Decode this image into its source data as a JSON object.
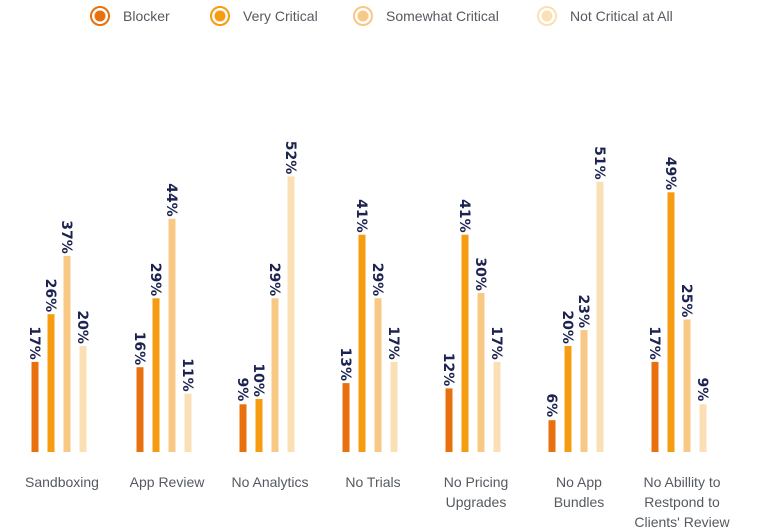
{
  "chart_data": {
    "type": "bar",
    "legend_position": "top",
    "grid": false,
    "ylim": [
      0,
      60
    ],
    "categories": [
      [
        "Sandboxing"
      ],
      [
        "App Review"
      ],
      [
        "No Analytics"
      ],
      [
        "No Trials"
      ],
      [
        "No Pricing",
        "Upgrades"
      ],
      [
        "No App",
        "Bundles"
      ],
      [
        "No Abillity to",
        "Restpond to",
        "Clients' Review"
      ]
    ],
    "series": [
      {
        "name": "Blocker",
        "color": "#e8700f",
        "values": [
          17,
          16,
          9,
          13,
          12,
          6,
          17
        ]
      },
      {
        "name": "Very Critical",
        "color": "#f59c11",
        "values": [
          26,
          29,
          10,
          41,
          41,
          20,
          49
        ]
      },
      {
        "name": "Somewhat Critical",
        "color": "#f8c885",
        "values": [
          37,
          44,
          29,
          29,
          30,
          23,
          25
        ]
      },
      {
        "name": "Not Critical at All",
        "color": "#fbe0b6",
        "values": [
          20,
          11,
          52,
          17,
          17,
          51,
          9
        ]
      }
    ],
    "value_suffix": "%"
  }
}
